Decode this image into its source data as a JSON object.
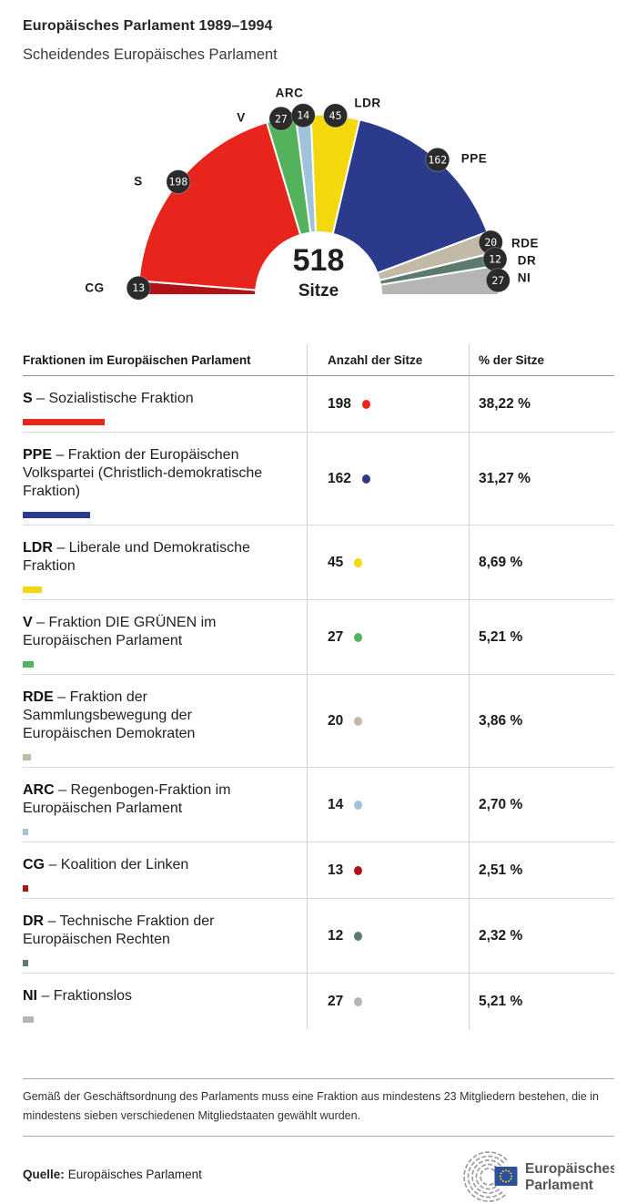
{
  "header": {
    "title": "Europäisches Parlament 1989–1994",
    "subtitle": "Scheidendes Europäisches Parlament"
  },
  "chart_data": {
    "type": "pie",
    "variant": "parliament-hemicycle-half-donut",
    "title": "Scheidendes Europäisches Parlament",
    "center_total": "518",
    "center_label": "Sitze",
    "total_seats": 518,
    "legend_position": "none",
    "order_left_to_right": [
      "CG",
      "S",
      "V",
      "ARC",
      "LDR",
      "PPE",
      "RDE",
      "DR",
      "NI"
    ],
    "series": [
      {
        "abbr": "CG",
        "seats": 13,
        "percent": "2,51 %",
        "color": "#b01218"
      },
      {
        "abbr": "S",
        "seats": 198,
        "percent": "38,22 %",
        "color": "#e8251d"
      },
      {
        "abbr": "V",
        "seats": 27,
        "percent": "5,21 %",
        "color": "#55b25c"
      },
      {
        "abbr": "ARC",
        "seats": 14,
        "percent": "2,70 %",
        "color": "#9fc3da"
      },
      {
        "abbr": "LDR",
        "seats": 45,
        "percent": "8,69 %",
        "color": "#f2d80c"
      },
      {
        "abbr": "PPE",
        "seats": 162,
        "percent": "31,27 %",
        "color": "#2c3a8c"
      },
      {
        "abbr": "RDE",
        "seats": 20,
        "percent": "3,86 %",
        "color": "#c3b9a7"
      },
      {
        "abbr": "DR",
        "seats": 12,
        "percent": "2,32 %",
        "color": "#5d7a6e"
      },
      {
        "abbr": "NI",
        "seats": 27,
        "percent": "5,21 %",
        "color": "#b5b6b4"
      }
    ]
  },
  "table": {
    "headers": [
      "Fraktionen im Europäischen Parlament",
      "Anzahl der Sitze",
      "% der Sitze"
    ],
    "rows": [
      {
        "abbr": "S",
        "name": "Sozialistische Fraktion",
        "seats": "198",
        "percent": "38,22 %",
        "color": "#e8251d"
      },
      {
        "abbr": "PPE",
        "name": "Fraktion der Europäischen Volkspartei (Christlich-demokratische Fraktion)",
        "seats": "162",
        "percent": "31,27 %",
        "color": "#2c3a8c"
      },
      {
        "abbr": "LDR",
        "name": "Liberale und Demokratische Fraktion",
        "seats": "45",
        "percent": "8,69 %",
        "color": "#f2d80c"
      },
      {
        "abbr": "V",
        "name": "Fraktion DIE GRÜNEN im Europäischen Parlament",
        "seats": "27",
        "percent": "5,21 %",
        "color": "#55b25c"
      },
      {
        "abbr": "RDE",
        "name": "Fraktion der Sammlungsbewegung der Europäischen Demokraten",
        "seats": "20",
        "percent": "3,86 %",
        "color": "#c3b9a7"
      },
      {
        "abbr": "ARC",
        "name": "Regenbogen-Fraktion im Europäischen Parlament",
        "seats": "14",
        "percent": "2,70 %",
        "color": "#9fc3da"
      },
      {
        "abbr": "CG",
        "name": "Koalition der Linken",
        "seats": "13",
        "percent": "2,51 %",
        "color": "#b01218"
      },
      {
        "abbr": "DR",
        "name": "Technische Fraktion der Europäischen Rechten",
        "seats": "12",
        "percent": "2,32 %",
        "color": "#5d7a6e"
      },
      {
        "abbr": "NI",
        "name": "Fraktionslos",
        "seats": "27",
        "percent": "5,21 %",
        "color": "#b5b6b4"
      }
    ]
  },
  "footnote": "Gemäß der Geschäftsordnung des Parlaments muss eine Fraktion aus mindestens 23 Mitgliedern bestehen, die in mindestens sieben verschiedenen Mitgliedstaaten gewählt wurden.",
  "source": {
    "label": "Quelle:",
    "text": "Europäisches Parlament"
  },
  "logo": {
    "line1": "Europäisches",
    "line2": "Parlament"
  }
}
